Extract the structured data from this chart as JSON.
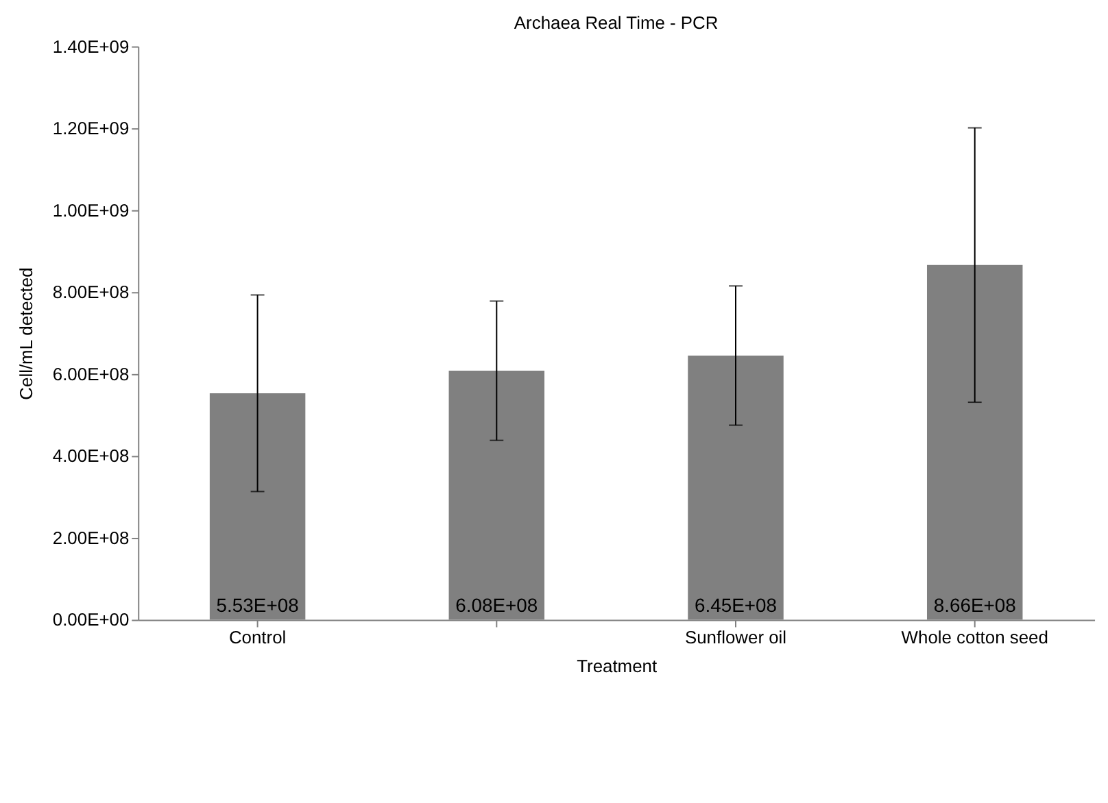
{
  "chart_data": {
    "type": "bar",
    "title": "Archaea Real Time - PCR",
    "xlabel": "Treatment",
    "ylabel": "Cell/mL detected",
    "categories": [
      "Control",
      null,
      "Sunflower oil",
      "Whole cotton seed"
    ],
    "values": [
      553000000,
      608000000,
      645000000,
      866000000
    ],
    "errors": [
      240000000,
      170000000,
      170000000,
      335000000
    ],
    "value_labels": [
      "5.53E+08",
      "6.08E+08",
      "6.45E+08",
      "8.66E+08"
    ],
    "color": "#808080",
    "ylim": [
      0,
      1400000000
    ],
    "yticks": [
      {
        "value": 0,
        "label": "0.00E+00"
      },
      {
        "value": 200000000,
        "label": "2.00E+08"
      },
      {
        "value": 400000000,
        "label": "4.00E+08"
      },
      {
        "value": 600000000,
        "label": "6.00E+08"
      },
      {
        "value": 800000000,
        "label": "8.00E+08"
      },
      {
        "value": 1000000000,
        "label": "1.00E+09"
      },
      {
        "value": 1200000000,
        "label": "1.20E+09"
      },
      {
        "value": 1400000000,
        "label": "1.40E+09"
      }
    ],
    "grid": false
  }
}
